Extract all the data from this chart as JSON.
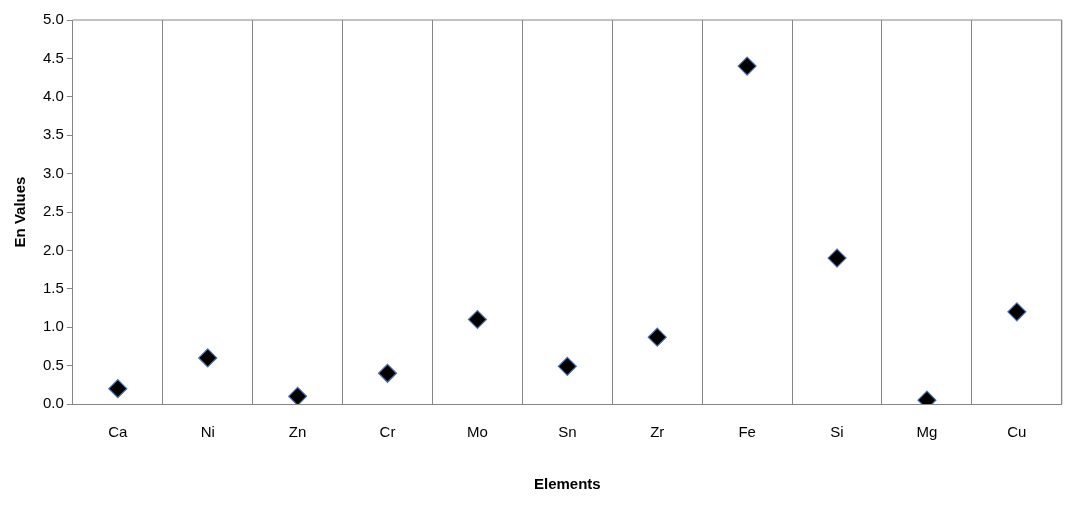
{
  "chart_data": {
    "type": "scatter",
    "xlabel": "Elements",
    "ylabel": "En Values",
    "categories": [
      "Ca",
      "Ni",
      "Zn",
      "Cr",
      "Mo",
      "Sn",
      "Zr",
      "Fe",
      "Si",
      "Mg",
      "Cu"
    ],
    "series": [
      {
        "color": "#000000",
        "values": [
          0.2,
          0.6,
          0.1,
          0.4,
          1.1,
          0.49,
          0.87,
          4.4,
          1.9,
          0.05,
          1.2
        ]
      }
    ],
    "ylim": [
      0,
      5
    ],
    "yticks": [
      {
        "value": 0,
        "label": "0.0"
      },
      {
        "value": 0.5,
        "label": "0.5"
      },
      {
        "value": 1,
        "label": "1.0"
      },
      {
        "value": 1.5,
        "label": "1.5"
      },
      {
        "value": 2,
        "label": "2.0"
      },
      {
        "value": 2.5,
        "label": "2.5"
      },
      {
        "value": 3,
        "label": "3.0"
      },
      {
        "value": 3.5,
        "label": "3.5"
      },
      {
        "value": 4,
        "label": "4.0"
      },
      {
        "value": 4.5,
        "label": "4.5"
      },
      {
        "value": 5,
        "label": "5.0"
      }
    ],
    "grid": "x",
    "legend": false,
    "marker": "diamond"
  }
}
